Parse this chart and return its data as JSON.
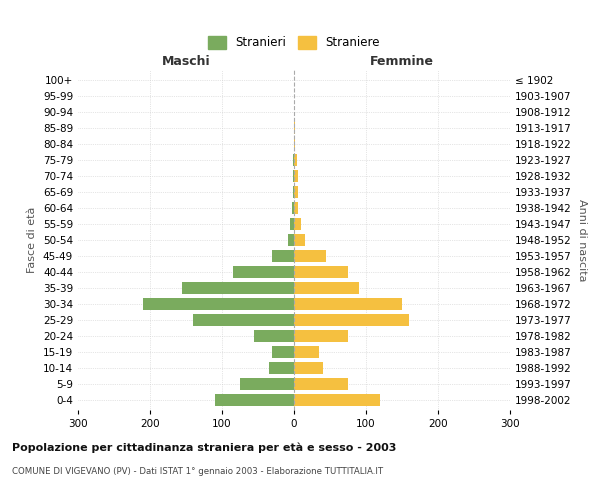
{
  "age_groups": [
    "0-4",
    "5-9",
    "10-14",
    "15-19",
    "20-24",
    "25-29",
    "30-34",
    "35-39",
    "40-44",
    "45-49",
    "50-54",
    "55-59",
    "60-64",
    "65-69",
    "70-74",
    "75-79",
    "80-84",
    "85-89",
    "90-94",
    "95-99",
    "100+"
  ],
  "birth_years": [
    "1998-2002",
    "1993-1997",
    "1988-1992",
    "1983-1987",
    "1978-1982",
    "1973-1977",
    "1968-1972",
    "1963-1967",
    "1958-1962",
    "1953-1957",
    "1948-1952",
    "1943-1947",
    "1938-1942",
    "1933-1937",
    "1928-1932",
    "1923-1927",
    "1918-1922",
    "1913-1917",
    "1908-1912",
    "1903-1907",
    "≤ 1902"
  ],
  "maschi": [
    110,
    75,
    35,
    30,
    55,
    140,
    210,
    155,
    85,
    30,
    8,
    5,
    3,
    2,
    2,
    1,
    0,
    0,
    0,
    0,
    0
  ],
  "femmine": [
    120,
    75,
    40,
    35,
    75,
    160,
    150,
    90,
    75,
    45,
    15,
    10,
    6,
    5,
    5,
    4,
    1,
    1,
    0,
    0,
    0
  ],
  "maschi_color": "#7aab5e",
  "femmine_color": "#f5c040",
  "background_color": "#ffffff",
  "grid_color": "#cccccc",
  "title": "Popolazione per cittadinanza straniera per età e sesso - 2003",
  "subtitle": "COMUNE DI VIGEVANO (PV) - Dati ISTAT 1° gennaio 2003 - Elaborazione TUTTITALIA.IT",
  "left_header": "Maschi",
  "right_header": "Femmine",
  "left_axis_label": "Fasce di età",
  "right_axis_label": "Anni di nascita",
  "legend_maschi": "Stranieri",
  "legend_femmine": "Straniere",
  "xlim": 300,
  "bar_height": 0.75
}
